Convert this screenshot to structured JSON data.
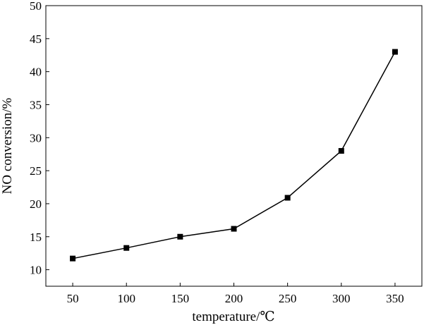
{
  "chart_data": {
    "type": "line",
    "title": "",
    "xlabel": "temperature/℃",
    "ylabel": "NO conversion/%",
    "x": [
      50,
      100,
      150,
      200,
      250,
      300,
      350
    ],
    "series": [
      {
        "values": [
          11.7,
          13.3,
          15.0,
          16.2,
          20.9,
          28.0,
          43.0
        ]
      }
    ],
    "xlim": [
      25,
      375
    ],
    "ylim": [
      7.5,
      50
    ],
    "xticks": [
      50,
      100,
      150,
      200,
      250,
      300,
      350
    ],
    "xtick_labels": [
      "50",
      "100",
      "150",
      "200",
      "250",
      "300",
      "350"
    ],
    "yticks": [
      10,
      15,
      20,
      25,
      30,
      35,
      40,
      45,
      50
    ],
    "ytick_labels": [
      "10",
      "15",
      "20",
      "25",
      "30",
      "35",
      "40",
      "45",
      "50"
    ],
    "grid": false,
    "marker": "square",
    "colors": {
      "line": "#000000",
      "marker": "#000000"
    }
  }
}
